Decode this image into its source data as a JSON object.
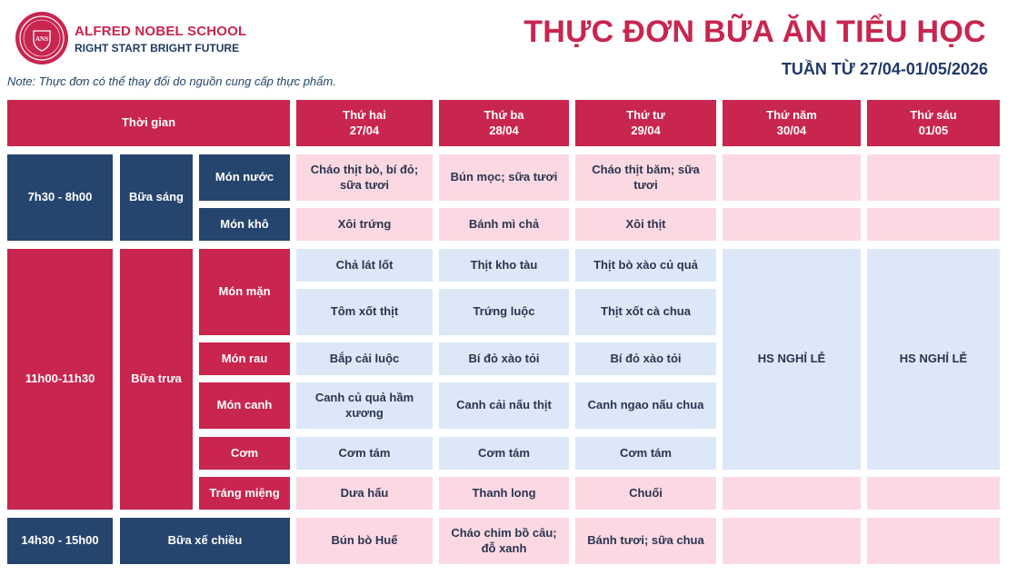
{
  "header": {
    "school_name": "ALFRED NOBEL SCHOOL",
    "slogan": "RIGHT START  BRIGHT FUTURE",
    "logo_text": "ANS",
    "title": "THỰC ĐƠN BỮA ĂN TIỂU HỌC",
    "week": "TUẦN TỪ 27/04-01/05/2026",
    "note": "Note: Thực đơn có thể thay đổi do nguồn cung cấp thực phẩm."
  },
  "colors": {
    "accent": "#c8254f",
    "navy": "#26456e",
    "pink": "#fcd9e2",
    "light_blue": "#dce8f8"
  },
  "table": {
    "time_header": "Thời gian",
    "days": [
      {
        "name": "Thứ hai",
        "date": "27/04"
      },
      {
        "name": "Thứ ba",
        "date": "28/04"
      },
      {
        "name": "Thứ tư",
        "date": "29/04"
      },
      {
        "name": "Thứ năm",
        "date": "30/04"
      },
      {
        "name": "Thứ sáu",
        "date": "01/05"
      }
    ],
    "breakfast": {
      "time": "7h30 - 8h00",
      "meal": "Bữa sáng",
      "rows": [
        {
          "label": "Món nước",
          "dishes": [
            "Cháo thịt bò, bí đỏ; sữa tươi",
            "Bún mọc; sữa tươi",
            "Cháo thịt băm; sữa tươi",
            "",
            ""
          ]
        },
        {
          "label": "Món khô",
          "dishes": [
            "Xôi trứng",
            "Bánh mì chả",
            "Xôi thịt",
            "",
            ""
          ]
        }
      ]
    },
    "lunch": {
      "time": "11h00-11h30",
      "meal": "Bữa trưa",
      "holiday_text": "HS NGHỈ LỄ",
      "main_label": "Món mặn",
      "main_rows": [
        [
          "Chả lát lốt",
          "Thịt  kho tàu",
          "Thịt bò xào củ quả"
        ],
        [
          "Tôm xốt thịt",
          "Trứng luộc",
          "Thịt xốt cà chua"
        ]
      ],
      "rows": [
        {
          "label": "Món rau",
          "dishes": [
            "Bắp cải luộc",
            "Bí đỏ xào tỏi",
            "Bí đỏ xào tỏi"
          ]
        },
        {
          "label": "Món canh",
          "dishes": [
            "Canh củ quả hầm xương",
            "Canh cải nấu thịt",
            "Canh ngao nấu chua"
          ]
        },
        {
          "label": "Cơm",
          "dishes": [
            "Cơm tám",
            "Cơm tám",
            "Cơm tám"
          ]
        },
        {
          "label": "Tráng miệng",
          "dishes": [
            "Dưa hấu",
            "Thanh long",
            "Chuối",
            "",
            ""
          ]
        }
      ]
    },
    "snack": {
      "time": "14h30 - 15h00",
      "meal": "Bữa xế chiều",
      "dishes": [
        "Bún bò Huế",
        "Cháo chim bồ câu; đỗ xanh",
        "Bánh tươi; sữa chua",
        "",
        ""
      ]
    }
  }
}
